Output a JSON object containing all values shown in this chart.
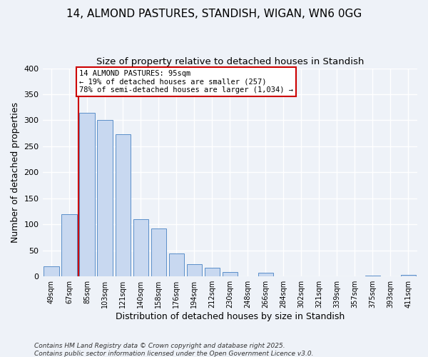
{
  "title1": "14, ALMOND PASTURES, STANDISH, WIGAN, WN6 0GG",
  "title2": "Size of property relative to detached houses in Standish",
  "xlabel": "Distribution of detached houses by size in Standish",
  "ylabel": "Number of detached properties",
  "bar_labels": [
    "49sqm",
    "67sqm",
    "85sqm",
    "103sqm",
    "121sqm",
    "140sqm",
    "158sqm",
    "176sqm",
    "194sqm",
    "212sqm",
    "230sqm",
    "248sqm",
    "266sqm",
    "284sqm",
    "302sqm",
    "321sqm",
    "339sqm",
    "357sqm",
    "375sqm",
    "393sqm",
    "411sqm"
  ],
  "bar_values": [
    20,
    120,
    315,
    300,
    273,
    110,
    92,
    44,
    23,
    17,
    8,
    0,
    7,
    0,
    0,
    0,
    0,
    0,
    1,
    0,
    3
  ],
  "bar_color": "#c8d8f0",
  "bar_edge_color": "#5b8fc9",
  "vline_x": 1.5,
  "vline_color": "#cc0000",
  "annotation_text": "14 ALMOND PASTURES: 95sqm\n← 19% of detached houses are smaller (257)\n78% of semi-detached houses are larger (1,034) →",
  "annotation_box_color": "#ffffff",
  "annotation_box_edge": "#cc0000",
  "ylim": [
    0,
    400
  ],
  "yticks": [
    0,
    50,
    100,
    150,
    200,
    250,
    300,
    350,
    400
  ],
  "footnote1": "Contains HM Land Registry data © Crown copyright and database right 2025.",
  "footnote2": "Contains public sector information licensed under the Open Government Licence v3.0.",
  "bg_color": "#eef2f8",
  "grid_color": "#ffffff",
  "title_fontsize": 11,
  "subtitle_fontsize": 9.5
}
